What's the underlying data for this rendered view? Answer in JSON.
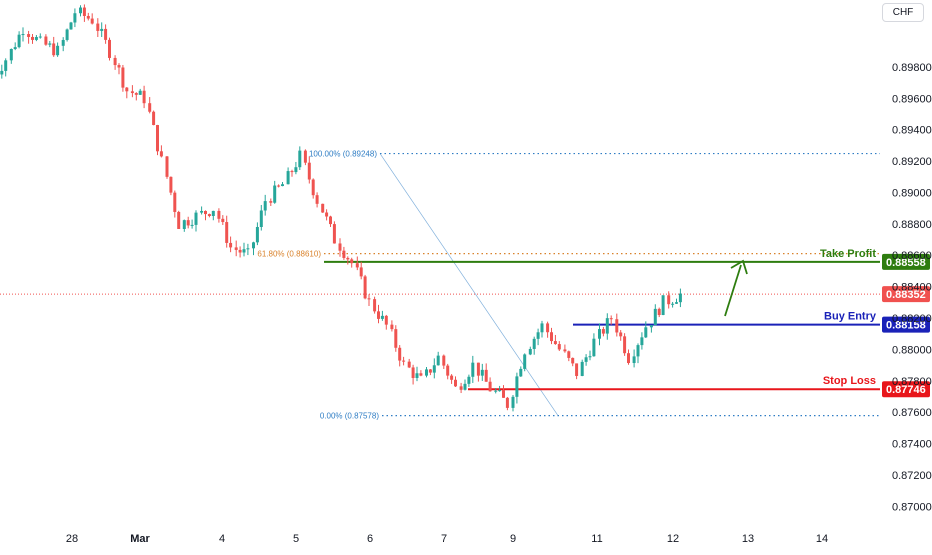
{
  "currency_button": "CHF",
  "colors": {
    "up": "#26a69a",
    "down": "#ef5350",
    "take_profit": "#2e7d0f",
    "buy_entry": "#1a22b8",
    "stop_loss": "#e8161b",
    "current_price": "#f0514f",
    "fib_top": "#2f7dc4",
    "fib_mid": "#d9822b",
    "fib_bottom": "#2f7dc4",
    "arrow": "#2e7d0f"
  },
  "chart_data": {
    "type": "candlestick",
    "title": "",
    "ylim": [
      0.869,
      0.9015
    ],
    "y_ticks": [
      "0.89800",
      "0.89600",
      "0.89400",
      "0.89200",
      "0.89000",
      "0.88800",
      "0.88600",
      "0.88400",
      "0.88200",
      "0.88000",
      "0.87800",
      "0.87600",
      "0.87400",
      "0.87200",
      "0.87000"
    ],
    "x_ticks": [
      "28",
      "Mar",
      "4",
      "5",
      "6",
      "7",
      "9",
      "11",
      "12",
      "13",
      "14"
    ],
    "levels": [
      {
        "name": "take_profit",
        "label": "Take Profit",
        "value": 0.88558,
        "price_tag": "0.88558"
      },
      {
        "name": "buy_entry",
        "label": "Buy Entry",
        "value": 0.88158,
        "price_tag": "0.88158"
      },
      {
        "name": "stop_loss",
        "label": "Stop Loss",
        "value": 0.87746,
        "price_tag": "0.87746"
      }
    ],
    "current_price": {
      "value": 0.88352,
      "price_tag": "0.88352"
    },
    "fib_levels": [
      {
        "label": "100.00% (0.89248)",
        "value": 0.89248
      },
      {
        "label": "61.80% (0.88610)",
        "value": 0.8861
      },
      {
        "label": "0.00% (0.87578)",
        "value": 0.87578
      }
    ],
    "fib_swing": {
      "from": {
        "x": "6",
        "value": 0.89248
      },
      "to": {
        "x": "9",
        "value": 0.87578
      }
    },
    "price_path": [
      {
        "x": "27",
        "value": 0.897
      },
      {
        "x": "27",
        "value": 0.8985
      },
      {
        "x": "28",
        "value": 0.9005
      },
      {
        "x": "28",
        "value": 0.8995
      },
      {
        "x": "28",
        "value": 0.899
      },
      {
        "x": "Mar",
        "value": 0.9015
      },
      {
        "x": "Mar",
        "value": 0.901
      },
      {
        "x": "Mar",
        "value": 0.899
      },
      {
        "x": "4",
        "value": 0.8965
      },
      {
        "x": "4",
        "value": 0.896
      },
      {
        "x": "4",
        "value": 0.892
      },
      {
        "x": "4",
        "value": 0.888
      },
      {
        "x": "5",
        "value": 0.8885
      },
      {
        "x": "5",
        "value": 0.889
      },
      {
        "x": "5",
        "value": 0.8865
      },
      {
        "x": "5",
        "value": 0.886
      },
      {
        "x": "6",
        "value": 0.8895
      },
      {
        "x": "6",
        "value": 0.8905
      },
      {
        "x": "6",
        "value": 0.8923
      },
      {
        "x": "6",
        "value": 0.8895
      },
      {
        "x": "6",
        "value": 0.887
      },
      {
        "x": "7",
        "value": 0.8855
      },
      {
        "x": "7",
        "value": 0.883
      },
      {
        "x": "7",
        "value": 0.8815
      },
      {
        "x": "7",
        "value": 0.879
      },
      {
        "x": "7",
        "value": 0.878
      },
      {
        "x": "9",
        "value": 0.8795
      },
      {
        "x": "9",
        "value": 0.8775
      },
      {
        "x": "9",
        "value": 0.879
      },
      {
        "x": "9",
        "value": 0.8775
      },
      {
        "x": "9",
        "value": 0.8765
      },
      {
        "x": "11",
        "value": 0.88
      },
      {
        "x": "11",
        "value": 0.8815
      },
      {
        "x": "11",
        "value": 0.88
      },
      {
        "x": "11",
        "value": 0.8785
      },
      {
        "x": "11",
        "value": 0.8805
      },
      {
        "x": "11",
        "value": 0.882
      },
      {
        "x": "12",
        "value": 0.8795
      },
      {
        "x": "12",
        "value": 0.8815
      },
      {
        "x": "12",
        "value": 0.883
      },
      {
        "x": "12",
        "value": 0.8835
      }
    ],
    "grid": false
  }
}
